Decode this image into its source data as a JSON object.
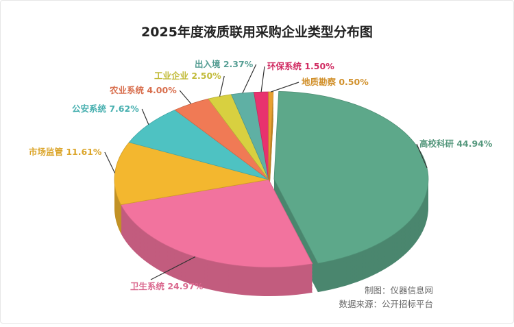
{
  "chart_data": {
    "type": "pie",
    "title": "2025年度液质联用采购企业类型分布图",
    "slices": [
      {
        "label": "高校科研",
        "value": 44.94,
        "value_label": "44.94%",
        "color": "#5da88a"
      },
      {
        "label": "卫生系统",
        "value": 24.97,
        "value_label": "24.97%",
        "color": "#f2739e"
      },
      {
        "label": "市场监管",
        "value": 11.61,
        "value_label": "11.61%",
        "color": "#f3b72f"
      },
      {
        "label": "公安系统",
        "value": 7.62,
        "value_label": "7.62%",
        "color": "#4ec2c2"
      },
      {
        "label": "农业系统",
        "value": 4.0,
        "value_label": "4.00%",
        "color": "#f07a55"
      },
      {
        "label": "工业企业",
        "value": 2.5,
        "value_label": "2.50%",
        "color": "#d8d040"
      },
      {
        "label": "出入境",
        "value": 2.37,
        "value_label": "2.37%",
        "color": "#5fb0a4"
      },
      {
        "label": "环保系统",
        "value": 1.5,
        "value_label": "1.50%",
        "color": "#e8326e"
      },
      {
        "label": "地质勘察",
        "value": 0.5,
        "value_label": "0.50%",
        "color": "#e8a030"
      }
    ],
    "legend": "none"
  },
  "footer": {
    "credit": "制图：仪器信息网",
    "source": "数据来源：公开招标平台"
  }
}
